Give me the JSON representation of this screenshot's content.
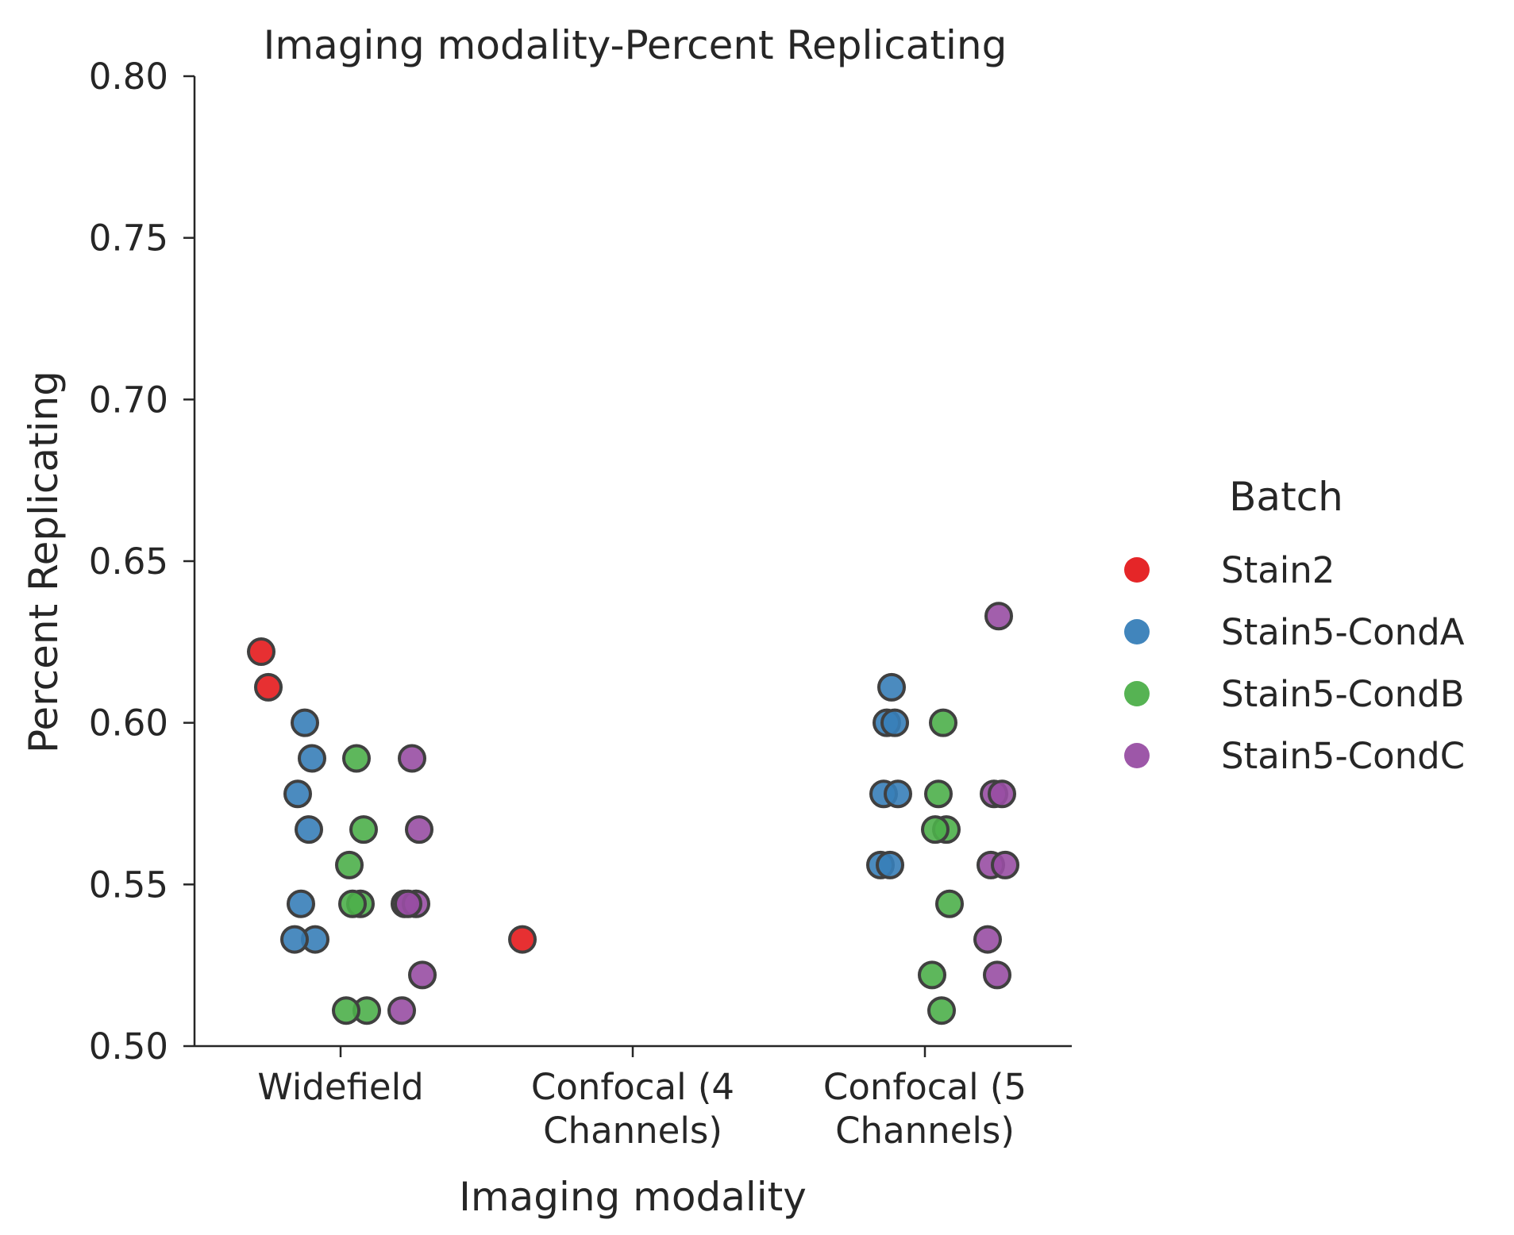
{
  "chart_data": {
    "type": "scatter",
    "title": "Imaging modality-Percent Replicating",
    "xlabel": "Imaging modality",
    "ylabel": "Percent Replicating",
    "categories": [
      "Widefield",
      "Confocal (4 Channels)",
      "Confocal (5 Channels)"
    ],
    "category_lines": [
      [
        "Widefield"
      ],
      [
        "Confocal (4",
        "Channels)"
      ],
      [
        "Confocal (5",
        "Channels)"
      ]
    ],
    "ylim": [
      0.5,
      0.8
    ],
    "yticks": [
      "0.50",
      "0.55",
      "0.60",
      "0.65",
      "0.70",
      "0.75",
      "0.80"
    ],
    "grid": false,
    "legend": {
      "title": "Batch",
      "position": "right"
    },
    "series": [
      {
        "name": "Stain2",
        "color": "#e41a1c",
        "points": [
          {
            "x": "Widefield",
            "y": 0.622
          },
          {
            "x": "Widefield",
            "y": 0.611
          },
          {
            "x": "Confocal (4 Channels)",
            "y": 0.533
          }
        ]
      },
      {
        "name": "Stain5-CondA",
        "color": "#377eb8",
        "points": [
          {
            "x": "Widefield",
            "y": 0.6
          },
          {
            "x": "Widefield",
            "y": 0.589
          },
          {
            "x": "Widefield",
            "y": 0.578
          },
          {
            "x": "Widefield",
            "y": 0.567
          },
          {
            "x": "Widefield",
            "y": 0.544
          },
          {
            "x": "Widefield",
            "y": 0.533
          },
          {
            "x": "Widefield",
            "y": 0.533
          },
          {
            "x": "Confocal (5 Channels)",
            "y": 0.611
          },
          {
            "x": "Confocal (5 Channels)",
            "y": 0.6
          },
          {
            "x": "Confocal (5 Channels)",
            "y": 0.6
          },
          {
            "x": "Confocal (5 Channels)",
            "y": 0.578
          },
          {
            "x": "Confocal (5 Channels)",
            "y": 0.578
          },
          {
            "x": "Confocal (5 Channels)",
            "y": 0.556
          },
          {
            "x": "Confocal (5 Channels)",
            "y": 0.556
          }
        ]
      },
      {
        "name": "Stain5-CondB",
        "color": "#4daf4a",
        "points": [
          {
            "x": "Widefield",
            "y": 0.589
          },
          {
            "x": "Widefield",
            "y": 0.567
          },
          {
            "x": "Widefield",
            "y": 0.556
          },
          {
            "x": "Widefield",
            "y": 0.544
          },
          {
            "x": "Widefield",
            "y": 0.544
          },
          {
            "x": "Widefield",
            "y": 0.511
          },
          {
            "x": "Widefield",
            "y": 0.511
          },
          {
            "x": "Confocal (5 Channels)",
            "y": 0.6
          },
          {
            "x": "Confocal (5 Channels)",
            "y": 0.578
          },
          {
            "x": "Confocal (5 Channels)",
            "y": 0.567
          },
          {
            "x": "Confocal (5 Channels)",
            "y": 0.567
          },
          {
            "x": "Confocal (5 Channels)",
            "y": 0.544
          },
          {
            "x": "Confocal (5 Channels)",
            "y": 0.522
          },
          {
            "x": "Confocal (5 Channels)",
            "y": 0.511
          }
        ]
      },
      {
        "name": "Stain5-CondC",
        "color": "#984ea3",
        "points": [
          {
            "x": "Widefield",
            "y": 0.589
          },
          {
            "x": "Widefield",
            "y": 0.567
          },
          {
            "x": "Widefield",
            "y": 0.544
          },
          {
            "x": "Widefield",
            "y": 0.544
          },
          {
            "x": "Widefield",
            "y": 0.544
          },
          {
            "x": "Widefield",
            "y": 0.522
          },
          {
            "x": "Widefield",
            "y": 0.511
          },
          {
            "x": "Confocal (5 Channels)",
            "y": 0.633
          },
          {
            "x": "Confocal (5 Channels)",
            "y": 0.578
          },
          {
            "x": "Confocal (5 Channels)",
            "y": 0.578
          },
          {
            "x": "Confocal (5 Channels)",
            "y": 0.556
          },
          {
            "x": "Confocal (5 Channels)",
            "y": 0.556
          },
          {
            "x": "Confocal (5 Channels)",
            "y": 0.533
          },
          {
            "x": "Confocal (5 Channels)",
            "y": 0.522
          }
        ]
      }
    ]
  }
}
